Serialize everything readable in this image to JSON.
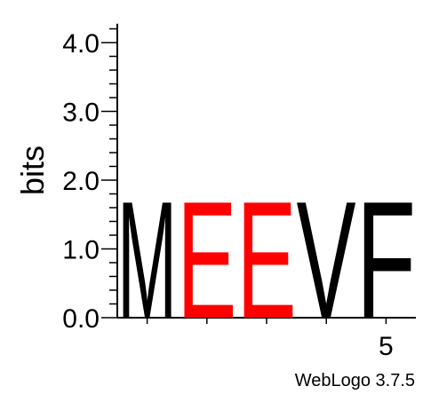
{
  "chart_data": {
    "type": "sequence-logo",
    "ylabel": "bits",
    "ylim": [
      0,
      4.3
    ],
    "yticks": [
      "0.0",
      "1.0",
      "2.0",
      "3.0",
      "4.0"
    ],
    "xticks_labeled": [
      {
        "position": 5,
        "label": "5"
      }
    ],
    "positions": [
      1,
      2,
      3,
      4,
      5
    ],
    "letters": [
      {
        "position": 1,
        "letter": "M",
        "bits": 1.75,
        "color": "#000000"
      },
      {
        "position": 2,
        "letter": "E",
        "bits": 1.75,
        "color": "#ff0000"
      },
      {
        "position": 3,
        "letter": "E",
        "bits": 1.75,
        "color": "#ff0000"
      },
      {
        "position": 4,
        "letter": "V",
        "bits": 1.75,
        "color": "#000000"
      },
      {
        "position": 5,
        "letter": "F",
        "bits": 1.75,
        "color": "#000000"
      }
    ]
  },
  "footer": {
    "credit": "WebLogo 3.7.5"
  }
}
